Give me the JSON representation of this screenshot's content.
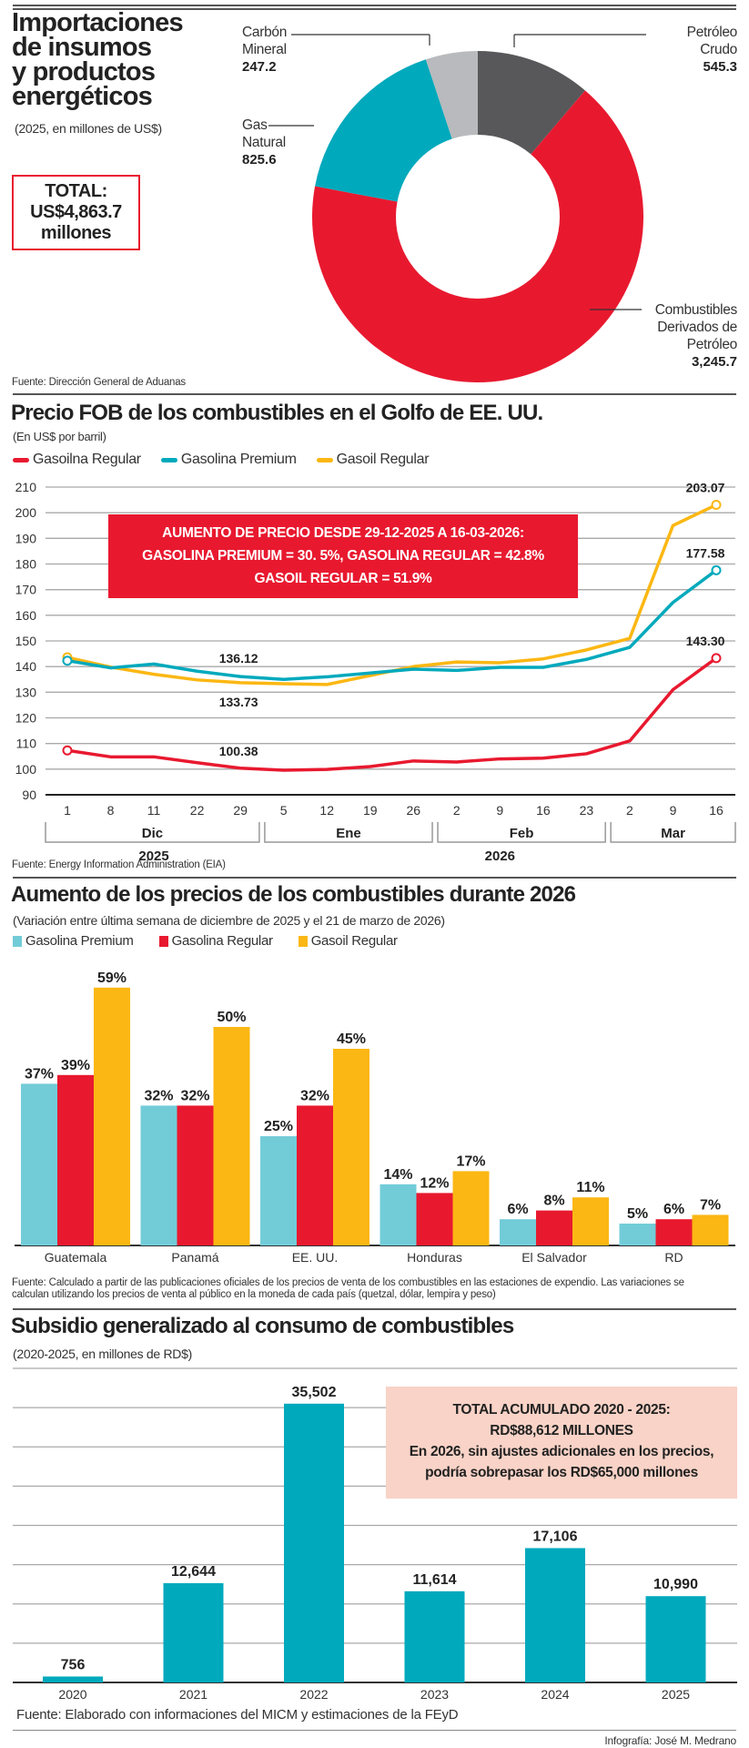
{
  "colors": {
    "red": "#e8192f",
    "teal": "#00a9bc",
    "light_teal": "#72ccd8",
    "yellow": "#fbb713",
    "dark_gray": "#58585a",
    "light_gray": "#b9babd",
    "peach": "#f9d3c7"
  },
  "section1": {
    "title_lines": [
      "Importaciones",
      "de insumos",
      "y productos",
      "energéticos"
    ],
    "subtitle": "(2025, en millones de US$)",
    "total_lines": [
      "TOTAL:",
      "US$4,863.7",
      "millones"
    ],
    "source": "Fuente: Dirección General de Aduanas"
  },
  "section2": {
    "title": "Precio FOB de los combustibles en el Golfo de EE. UU.",
    "subtitle": "(En US$ por barril)",
    "annotation_lines": [
      "AUMENTO  DE PRECIO DESDE 29-12-2025 A 16-03-2026:",
      "GASOLINA PREMIUM = 30. 5%, GASOLINA REGULAR =  42.8%",
      "GASOIL REGULAR =  51.9%"
    ],
    "source": "Fuente: Energy Information Administration (EIA)"
  },
  "section3": {
    "title": "Aumento de los precios de los combustibles durante 2026",
    "subtitle": "(Variación entre última semana de diciembre de 2025 y el 21 de marzo de 2026)",
    "source_lines": [
      "Fuente: Calculado a partir de las publicaciones oficiales de los precios de venta de los combustibles en las estaciones de expendio. Las variaciones se",
      "calculan utilizando los precios de venta al público en la moneda de cada país (quetzal, dólar, lempira y peso)"
    ]
  },
  "section4": {
    "title": "Subsidio generalizado al consumo de combustibles",
    "subtitle": "(2020-2025, en millones de RD$)",
    "callout_lines": [
      "TOTAL ACUMULADO 2020 - 2025:",
      "RD$88,612 MILLONES",
      "En 2026, sin ajustes adicionales en los precios,",
      "podría sobrepasar los RD$65,000 millones"
    ],
    "source": "Fuente: Elaborado con informaciones del MICM y estimaciones de la FEyD",
    "credit": "Infografía: José M. Medrano"
  },
  "chart_data": [
    {
      "type": "pie",
      "title": "Importaciones de insumos y productos energéticos",
      "subtitle": "(2025, en millones de US$)",
      "slices": [
        {
          "label": "Petróleo Crudo",
          "label_lines": [
            "Petróleo",
            "Crudo"
          ],
          "value": 545.3,
          "value_label": "545.3",
          "color": "#58585a"
        },
        {
          "label": "Combustibles Derivados de Petróleo",
          "label_lines": [
            "Combustibles",
            "Derivados de",
            "Petróleo"
          ],
          "value": 3245.7,
          "value_label": "3,245.7",
          "color": "#e8192f"
        },
        {
          "label": "Gas Natural",
          "label_lines": [
            "Gas",
            "Natural"
          ],
          "value": 825.6,
          "value_label": "825.6",
          "color": "#00a9bc"
        },
        {
          "label": "Carbón Mineral",
          "label_lines": [
            "Carbón",
            "Mineral"
          ],
          "value": 247.2,
          "value_label": "247.2",
          "color": "#b9babd"
        }
      ],
      "total": 4863.7
    },
    {
      "type": "line",
      "title": "Precio FOB de los combustibles en el Golfo de EE. UU.",
      "ylabel": "En US$ por barril",
      "ylim": [
        90,
        210
      ],
      "yticks": [
        90,
        100,
        110,
        120,
        130,
        140,
        150,
        160,
        170,
        180,
        190,
        200,
        210
      ],
      "grid": true,
      "legend": "top-left",
      "x": [
        "1",
        "8",
        "11",
        "22",
        "29",
        "5",
        "12",
        "19",
        "26",
        "2",
        "9",
        "16",
        "23",
        "2",
        "9",
        "16"
      ],
      "month_groups": [
        {
          "label": "Dic",
          "count": 5
        },
        {
          "label": "Ene",
          "count": 4
        },
        {
          "label": "Feb",
          "count": 4
        },
        {
          "label": "Mar",
          "count": 3
        }
      ],
      "year_groups": [
        {
          "label": "2025",
          "count": 5
        },
        {
          "label": "2026",
          "count": 11
        }
      ],
      "series": [
        {
          "name": "Gasoilna Regular",
          "color": "#e8192f",
          "values": [
            107.3,
            104.8,
            104.8,
            102.5,
            100.38,
            99.6,
            99.9,
            101.0,
            103.2,
            102.8,
            104.0,
            104.3,
            106.0,
            111.0,
            131.0,
            143.3
          ]
        },
        {
          "name": "Gasolina Premium",
          "color": "#00a9bc",
          "values": [
            142.3,
            139.5,
            141.0,
            138.2,
            136.12,
            135.0,
            136.0,
            137.5,
            139.0,
            138.5,
            139.7,
            139.7,
            142.8,
            147.5,
            165.0,
            177.58
          ]
        },
        {
          "name": "Gasoil Regular",
          "color": "#fbb713",
          "values": [
            143.6,
            139.8,
            137.0,
            134.8,
            133.73,
            133.3,
            133.0,
            136.5,
            140.0,
            141.8,
            141.5,
            143.0,
            146.5,
            151.0,
            195.0,
            203.07
          ]
        }
      ],
      "annotations": [
        {
          "text": "136.12",
          "series": "Gasolina Premium",
          "index": 4
        },
        {
          "text": "133.73",
          "series": "Gasoil Regular",
          "index": 4
        },
        {
          "text": "100.38",
          "series": "Gasoilna Regular",
          "index": 4
        },
        {
          "text": "203.07",
          "series": "Gasoil Regular",
          "index": 15
        },
        {
          "text": "177.58",
          "series": "Gasolina Premium",
          "index": 15
        },
        {
          "text": "143.30",
          "series": "Gasoilna Regular",
          "index": 15
        }
      ]
    },
    {
      "type": "bar",
      "title": "Aumento de los precios de los combustibles durante 2026",
      "subtitle": "(Variación entre última semana de diciembre de 2025 y el 21 de marzo de 2026)",
      "categories": [
        "Guatemala",
        "Panamá",
        "EE. UU.",
        "Honduras",
        "El Salvador",
        "RD"
      ],
      "ylim": [
        0,
        60
      ],
      "legend": "top-left",
      "series": [
        {
          "name": "Gasolina Premium",
          "color": "#72ccd8",
          "values": [
            37,
            32,
            25,
            14,
            6,
            5
          ]
        },
        {
          "name": "Gasolina Regular",
          "color": "#e8192f",
          "values": [
            39,
            32,
            32,
            12,
            8,
            6
          ]
        },
        {
          "name": "Gasoil Regular",
          "color": "#fbb713",
          "values": [
            59,
            50,
            45,
            17,
            11,
            7
          ]
        }
      ],
      "value_suffix": "%"
    },
    {
      "type": "bar",
      "title": "Subsidio generalizado al consumo de combustibles",
      "subtitle": "(2020-2025, en millones de RD$)",
      "categories": [
        "2020",
        "2021",
        "2022",
        "2023",
        "2024",
        "2025"
      ],
      "values": [
        756,
        12644,
        35502,
        11614,
        17106,
        10990
      ],
      "value_labels": [
        "756",
        "12,644",
        "35,502",
        "11,614",
        "17,106",
        "10,990"
      ],
      "ylim": [
        0,
        40000
      ],
      "grid": true,
      "color": "#00a9bc"
    }
  ]
}
